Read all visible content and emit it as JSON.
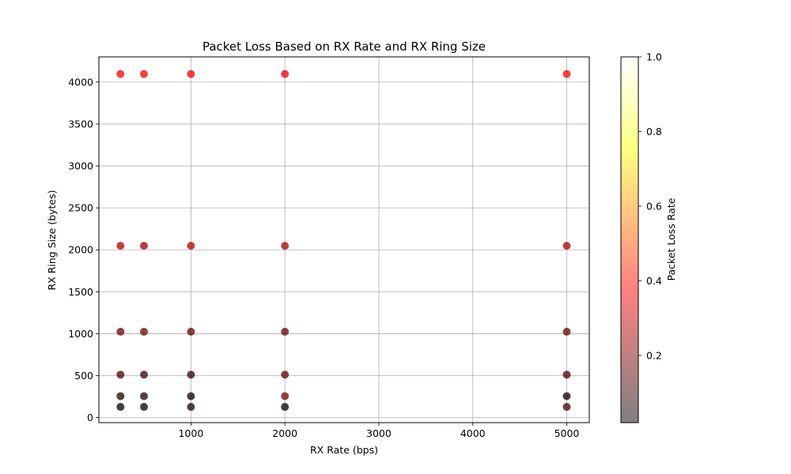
{
  "chart_data": {
    "type": "scatter",
    "title": "Packet Loss Based on RX Rate and RX Ring Size",
    "xlabel": "RX Rate (bps)",
    "ylabel": "RX Ring Size (bytes)",
    "xlim": [
      20,
      5240
    ],
    "ylim": [
      -60,
      4300
    ],
    "xticks": [
      1000,
      2000,
      3000,
      4000,
      5000
    ],
    "yticks": [
      0,
      500,
      1000,
      1500,
      2000,
      2500,
      3000,
      3500,
      4000
    ],
    "grid": true,
    "colorbar": {
      "label": "Packet Loss Rate",
      "range": [
        0.02,
        1.0
      ],
      "ticks": [
        0.2,
        0.4,
        0.6,
        0.8,
        1.0
      ],
      "colormap": "hot",
      "alpha": 0.75
    },
    "points": [
      {
        "x": 250,
        "y": 4096,
        "loss": 0.36
      },
      {
        "x": 500,
        "y": 4096,
        "loss": 0.36
      },
      {
        "x": 1000,
        "y": 4096,
        "loss": 0.35
      },
      {
        "x": 2000,
        "y": 4096,
        "loss": 0.34
      },
      {
        "x": 5000,
        "y": 4096,
        "loss": 0.37
      },
      {
        "x": 250,
        "y": 2048,
        "loss": 0.27
      },
      {
        "x": 500,
        "y": 2048,
        "loss": 0.24
      },
      {
        "x": 1000,
        "y": 2048,
        "loss": 0.26
      },
      {
        "x": 2000,
        "y": 2048,
        "loss": 0.25
      },
      {
        "x": 5000,
        "y": 2048,
        "loss": 0.25
      },
      {
        "x": 250,
        "y": 1024,
        "loss": 0.17
      },
      {
        "x": 500,
        "y": 1024,
        "loss": 0.17
      },
      {
        "x": 1000,
        "y": 1024,
        "loss": 0.16
      },
      {
        "x": 2000,
        "y": 1024,
        "loss": 0.16
      },
      {
        "x": 5000,
        "y": 1024,
        "loss": 0.16
      },
      {
        "x": 250,
        "y": 512,
        "loss": 0.12
      },
      {
        "x": 500,
        "y": 512,
        "loss": 0.1
      },
      {
        "x": 1000,
        "y": 512,
        "loss": 0.09
      },
      {
        "x": 2000,
        "y": 512,
        "loss": 0.15
      },
      {
        "x": 5000,
        "y": 512,
        "loss": 0.12
      },
      {
        "x": 250,
        "y": 256,
        "loss": 0.06
      },
      {
        "x": 500,
        "y": 256,
        "loss": 0.05
      },
      {
        "x": 1000,
        "y": 256,
        "loss": 0.04
      },
      {
        "x": 2000,
        "y": 256,
        "loss": 0.18
      },
      {
        "x": 5000,
        "y": 256,
        "loss": 0.04
      },
      {
        "x": 250,
        "y": 128,
        "loss": 0.03
      },
      {
        "x": 500,
        "y": 128,
        "loss": 0.03
      },
      {
        "x": 1000,
        "y": 128,
        "loss": 0.05
      },
      {
        "x": 2000,
        "y": 128,
        "loss": 0.03
      },
      {
        "x": 5000,
        "y": 128,
        "loss": 0.12
      }
    ]
  }
}
